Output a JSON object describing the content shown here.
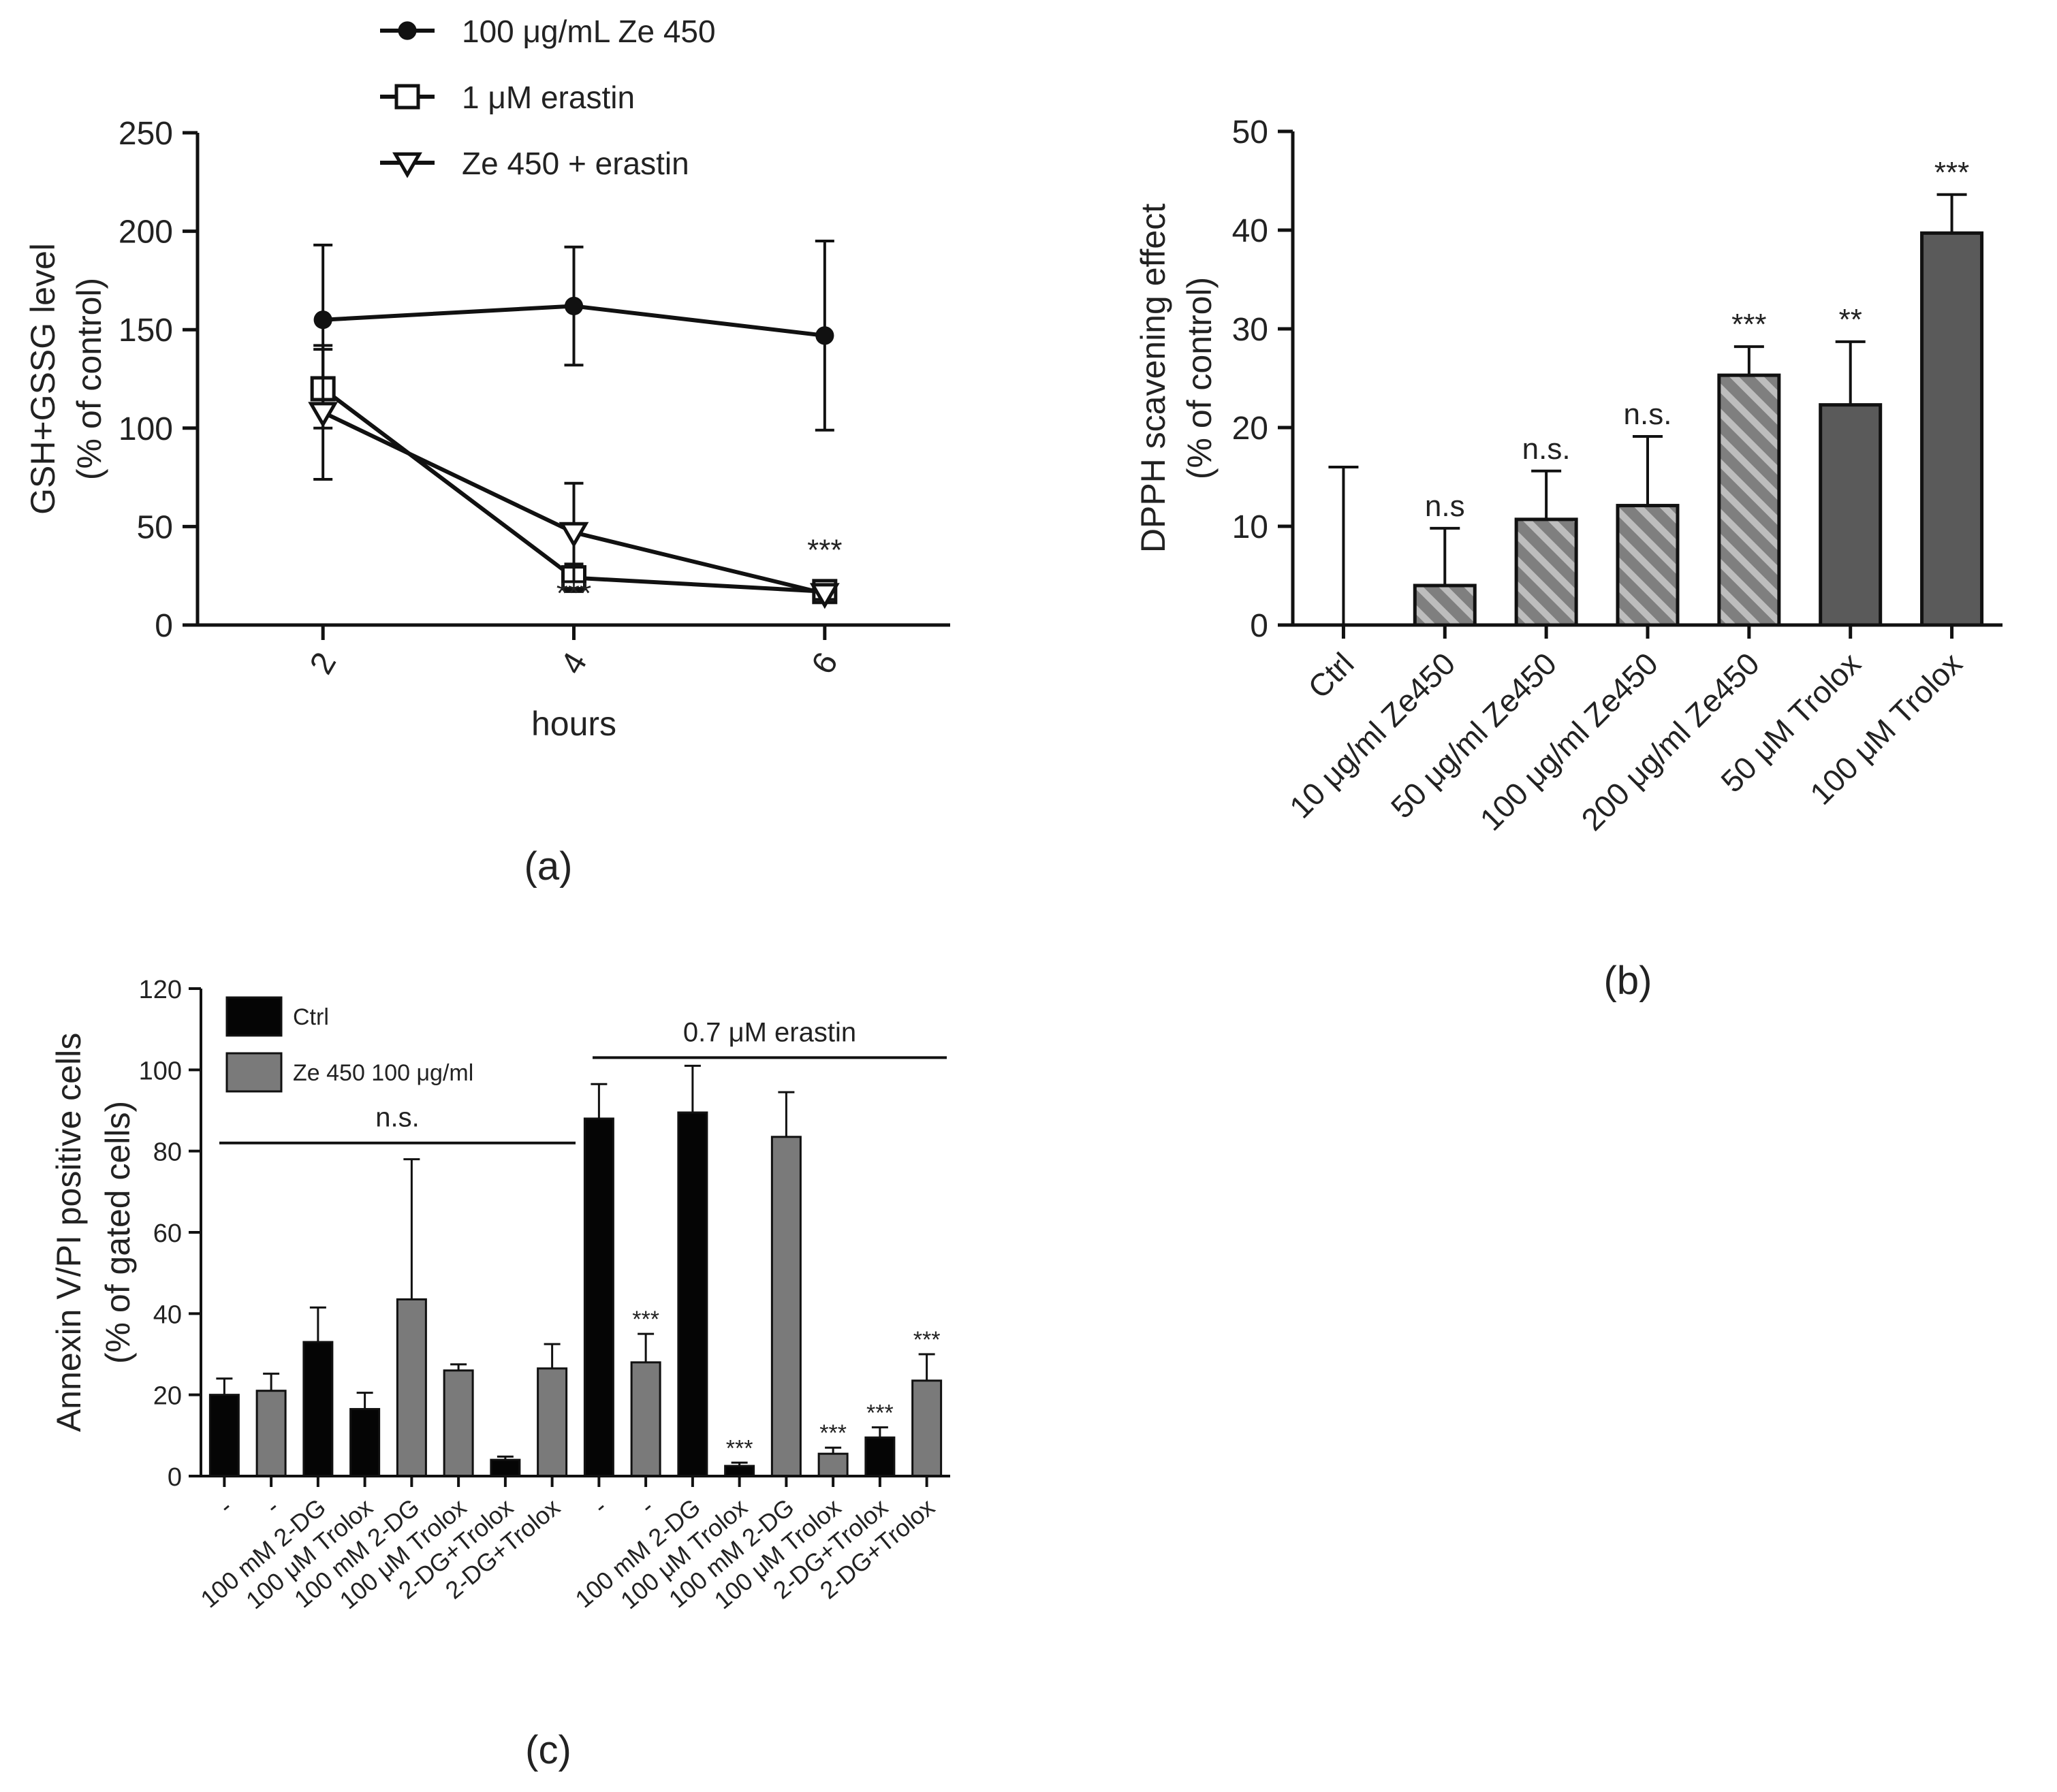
{
  "colors": {
    "ink": "#111111",
    "dark_bar": "#5a5a5a",
    "light_bar": "#7a7a7a",
    "hatch_base": "#7f7f7f",
    "hatch_stripe": "#bdbdbd",
    "black_bar": "#050505"
  },
  "chart_data": [
    {
      "id": "a",
      "panel_label": "(a)",
      "type": "line",
      "xlabel": "hours",
      "ylabel_lines": [
        "GSH+GSSG level",
        "(% of control)"
      ],
      "x_ticks": [
        "2",
        "4",
        "6"
      ],
      "x": [
        2,
        4,
        6
      ],
      "xlim": [
        1,
        7
      ],
      "ylim": [
        0,
        250
      ],
      "yticks": [
        0,
        50,
        100,
        150,
        200,
        250
      ],
      "series": [
        {
          "name": "100 μg/mL Ze 450",
          "marker": "filled-circle",
          "values": [
            155,
            162,
            147
          ],
          "errors": [
            38,
            30,
            48
          ]
        },
        {
          "name": "1 μM erastin",
          "marker": "open-square",
          "values": [
            120,
            24,
            17
          ],
          "errors": [
            20,
            7,
            3
          ]
        },
        {
          "name": "Ze 450 + erastin",
          "marker": "open-triangle-down",
          "values": [
            108,
            47,
            16
          ],
          "errors": [
            34,
            25,
            3
          ]
        }
      ],
      "annotations": [
        {
          "text": "***",
          "x": 4,
          "y": 11
        },
        {
          "text": "***",
          "x": 6,
          "y": 33
        }
      ]
    },
    {
      "id": "b",
      "panel_label": "(b)",
      "type": "bar",
      "ylabel_lines": [
        "DPPH scavening effect",
        "(% of control)"
      ],
      "categories": [
        "Ctrl",
        "10 μg/ml Ze450",
        "50 μg/ml Ze450",
        "100 μg/ml Ze450",
        "200 μg/ml Ze450",
        "50 μM Trolox",
        "100 μM Trolox"
      ],
      "values": [
        0,
        4,
        10.7,
        12.1,
        25.3,
        22.3,
        39.7
      ],
      "errors": [
        16,
        5.8,
        4.9,
        7,
        2.9,
        6.4,
        3.9
      ],
      "fills": [
        "none",
        "hatch",
        "hatch",
        "hatch",
        "hatch",
        "solid",
        "solid"
      ],
      "significance": [
        "",
        "n.s",
        "n.s.",
        "n.s.",
        "***",
        "**",
        "***"
      ],
      "ylim": [
        0,
        50
      ],
      "yticks": [
        0,
        10,
        20,
        30,
        40,
        50
      ]
    },
    {
      "id": "c",
      "panel_label": "(c)",
      "type": "bar",
      "ylabel_lines": [
        "Annexin V/PI positive cells",
        "(% of gated cells)"
      ],
      "categories": [
        "-",
        "-",
        "100 mM 2-DG",
        "100 μM Trolox",
        "100 mM 2-DG",
        "100 μM Trolox",
        "2-DG+Trolox",
        "2-DG+Trolox",
        "-",
        "-",
        "100 mM 2-DG",
        "100 μM Trolox",
        "100 mM 2-DG",
        "100 μM Trolox",
        "2-DG+Trolox",
        "2-DG+Trolox"
      ],
      "values": [
        20,
        21,
        33,
        16.5,
        43.5,
        26,
        4,
        26.5,
        88,
        28,
        89.5,
        2.5,
        83.5,
        5.5,
        9.5,
        23.5
      ],
      "errors": [
        4,
        4.2,
        8.5,
        4,
        34.5,
        1.5,
        0.8,
        6,
        8.5,
        7,
        11.5,
        0.8,
        11,
        1.5,
        2.5,
        6.5
      ],
      "bar_series": [
        "Ctrl",
        "Ze 450 100 μg/ml",
        "Ctrl",
        "Ctrl",
        "Ze 450 100 μg/ml",
        "Ze 450 100 μg/ml",
        "Ctrl",
        "Ze 450 100 μg/ml",
        "Ctrl",
        "Ze 450 100 μg/ml",
        "Ctrl",
        "Ctrl",
        "Ze 450 100 μg/ml",
        "Ze 450 100 μg/ml",
        "Ctrl",
        "Ze 450 100 μg/ml"
      ],
      "significance": [
        "",
        "",
        "",
        "",
        "",
        "",
        "",
        "",
        "",
        "***",
        "",
        "***",
        "",
        "***",
        "***",
        "***"
      ],
      "legend": [
        "Ctrl",
        "Ze 450 100 μg/ml"
      ],
      "group_labels": [
        {
          "text": "n.s.",
          "from_index": 0,
          "to_index": 7,
          "y": 82
        },
        {
          "text": "0.7 μM erastin",
          "from_index": 8,
          "to_index": 15,
          "y": 103
        }
      ],
      "ylim": [
        0,
        120
      ],
      "yticks": [
        0,
        20,
        40,
        60,
        80,
        100,
        120
      ]
    }
  ]
}
